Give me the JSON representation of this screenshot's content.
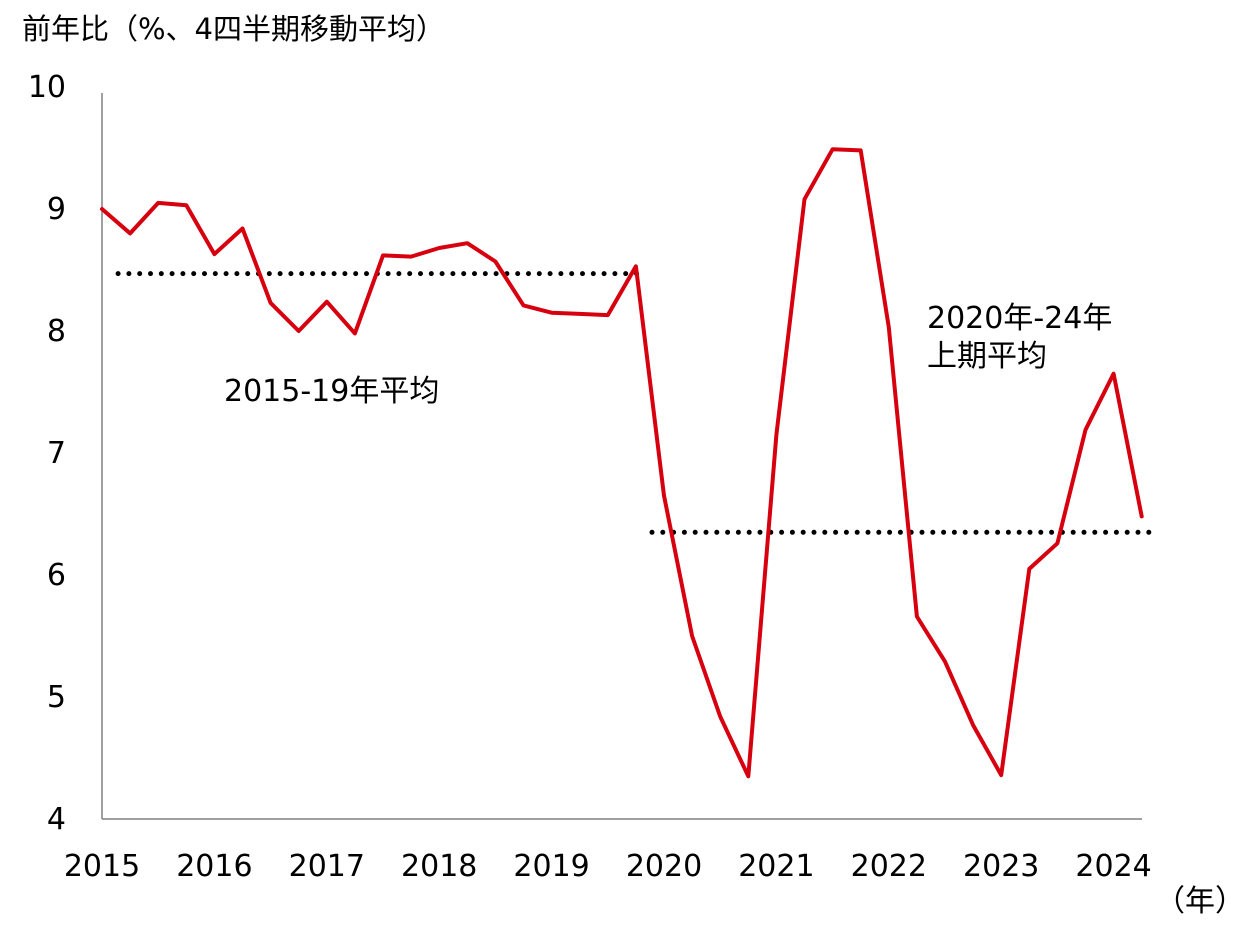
{
  "chart_data": {
    "type": "line",
    "ylabel": "前年比（%、4四半期移動平均）",
    "xunit": "（年）",
    "ylim": [
      4,
      10
    ],
    "yticks": [
      4,
      5,
      6,
      7,
      8,
      9,
      10
    ],
    "xticks": [
      "2015",
      "2016",
      "2017",
      "2018",
      "2019",
      "2020",
      "2021",
      "2022",
      "2023",
      "2024"
    ],
    "grid": false,
    "colors": {
      "series": "#d7000f",
      "reference": "#000000"
    },
    "series": [
      {
        "x": [
          "2015Q1",
          "2015Q2",
          "2015Q3",
          "2015Q4",
          "2016Q1",
          "2016Q2",
          "2016Q3",
          "2016Q4",
          "2017Q1",
          "2017Q2",
          "2017Q3",
          "2017Q4",
          "2018Q1",
          "2018Q2",
          "2018Q3",
          "2018Q4",
          "2019Q1",
          "2019Q2",
          "2019Q3",
          "2019Q4",
          "2020Q1",
          "2020Q2",
          "2020Q3",
          "2020Q4",
          "2021Q1",
          "2021Q2",
          "2021Q3",
          "2021Q4",
          "2022Q1",
          "2022Q2",
          "2022Q3",
          "2022Q4",
          "2023Q1",
          "2023Q2",
          "2023Q3",
          "2023Q4",
          "2024Q1",
          "2024Q2"
        ],
        "values": [
          9.0,
          8.8,
          9.05,
          9.03,
          8.63,
          8.84,
          8.23,
          8.0,
          8.24,
          7.98,
          8.62,
          8.61,
          8.68,
          8.72,
          8.57,
          8.21,
          8.15,
          8.14,
          8.13,
          8.53,
          6.65,
          5.5,
          4.84,
          4.35,
          7.15,
          9.08,
          9.49,
          9.48,
          8.03,
          5.66,
          5.29,
          4.77,
          4.36,
          6.05,
          6.26,
          7.19,
          7.65,
          6.48
        ]
      }
    ],
    "reference_lines": [
      {
        "label": "2015-19年平均",
        "value": 8.47,
        "from": "2015Q2",
        "to": "2019Q4"
      },
      {
        "label_lines": [
          "2020年-24年",
          "上期平均"
        ],
        "value": 6.35,
        "from": "2020Q1",
        "to": "2024Q2"
      }
    ]
  }
}
